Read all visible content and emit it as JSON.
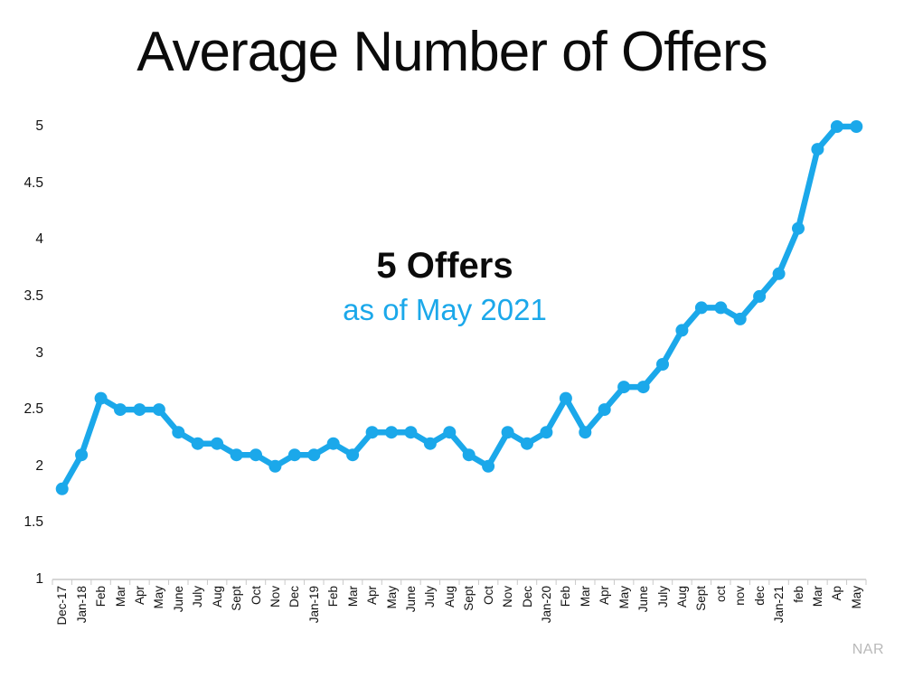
{
  "slide": {
    "title": "Average Number of Offers",
    "annotation": {
      "headline": "5 Offers",
      "subline": "as of May 2021"
    },
    "source": "NAR"
  },
  "colors": {
    "line": "#1BA8EA",
    "accent_text": "#1BA8EA",
    "title_text": "#0B0B0B",
    "axis": "#C9C9C9",
    "source_text": "#B9B9B9"
  },
  "chart_data": {
    "type": "line",
    "title": "Average Number of Offers",
    "categories": [
      "Dec-17",
      "Jan-18",
      "Feb",
      "Mar",
      "Apr",
      "May",
      "June",
      "July",
      "Aug",
      "Sept",
      "Oct",
      "Nov",
      "Dec",
      "Jan-19",
      "Feb",
      "Mar",
      "Apr",
      "May",
      "June",
      "July",
      "Aug",
      "Sept",
      "Oct",
      "Nov",
      "Dec",
      "Jan-20",
      "Feb",
      "Mar",
      "Apr",
      "May",
      "June",
      "July",
      "Aug",
      "Sept",
      "oct",
      "nov",
      "dec",
      "Jan-21",
      "feb",
      "Mar",
      "Ap",
      "May"
    ],
    "values": [
      1.8,
      2.1,
      2.6,
      2.5,
      2.5,
      2.5,
      2.3,
      2.2,
      2.2,
      2.1,
      2.1,
      2.0,
      2.1,
      2.1,
      2.2,
      2.1,
      2.3,
      2.3,
      2.3,
      2.2,
      2.3,
      2.1,
      2.0,
      2.3,
      2.2,
      2.3,
      2.6,
      2.3,
      2.5,
      2.7,
      2.7,
      2.9,
      3.2,
      3.4,
      3.4,
      3.3,
      3.5,
      3.7,
      4.1,
      4.8,
      5.0,
      5.0
    ],
    "xlabel": "",
    "ylabel": "",
    "ylim": [
      1,
      5
    ],
    "yticks": [
      1,
      1.5,
      2,
      2.5,
      3,
      3.5,
      4,
      4.5,
      5
    ],
    "grid": false,
    "legend": false,
    "marker": "circle",
    "line_color": "#1BA8EA",
    "annotations": [
      "5 Offers",
      "as of May 2021"
    ],
    "source": "NAR"
  }
}
